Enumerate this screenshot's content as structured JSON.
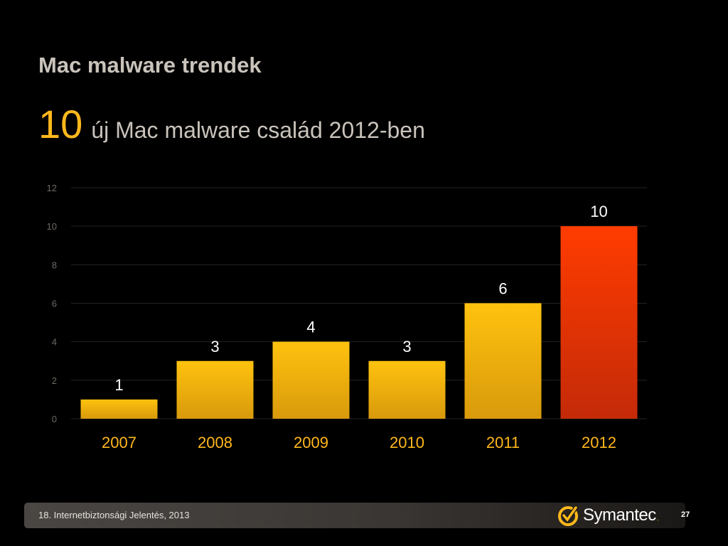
{
  "slide": {
    "title": "Mac malware trendek",
    "big_number": "10",
    "subtitle": "új Mac malware család 2012-ben"
  },
  "chart_data": {
    "type": "bar",
    "categories": [
      "2007",
      "2008",
      "2009",
      "2010",
      "2011",
      "2012"
    ],
    "values": [
      1,
      3,
      4,
      3,
      6,
      10
    ],
    "data_labels": [
      "1",
      "3",
      "4",
      "3",
      "6",
      "10"
    ],
    "highlight_index": 5,
    "ylim": [
      0,
      12
    ],
    "yticks": [
      "0",
      "2",
      "4",
      "6",
      "8",
      "10",
      "12"
    ],
    "grid": true,
    "colors": {
      "bar": "#ffc20e",
      "bar_bottom": "#d89a0c",
      "highlight": "#ff3c00",
      "highlight_bottom": "#c42a08",
      "category_label": "#ffb81c",
      "data_label": "#ffffff",
      "tick_label": "#6d6964",
      "gridline": "#262321"
    }
  },
  "footer": {
    "text": "18. Internetbiztonsági Jelentés, 2013",
    "logo_text": "Symantec",
    "logo_dot": ".",
    "page_number": "27"
  }
}
